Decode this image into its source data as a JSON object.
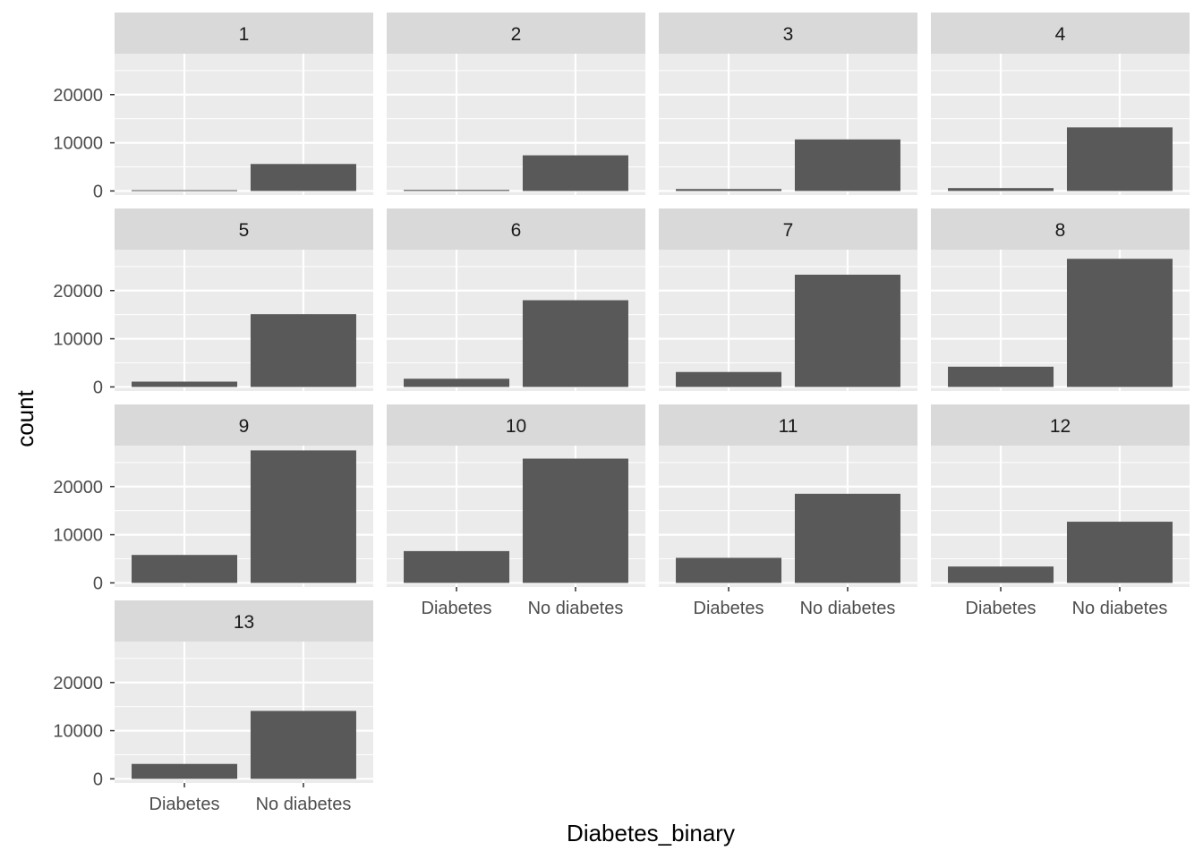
{
  "chart_data": {
    "type": "bar",
    "xlabel": "Diabetes_binary",
    "ylabel": "count",
    "categories": [
      "Diabetes",
      "No diabetes"
    ],
    "y_ticks": [
      "0",
      "10000",
      "20000"
    ],
    "ylim": [
      0,
      28500
    ],
    "grid": true,
    "facets": [
      {
        "label": "1",
        "values": [
          160,
          5600
        ]
      },
      {
        "label": "2",
        "values": [
          220,
          7400
        ]
      },
      {
        "label": "3",
        "values": [
          400,
          10700
        ]
      },
      {
        "label": "4",
        "values": [
          600,
          13200
        ]
      },
      {
        "label": "5",
        "values": [
          1100,
          15100
        ]
      },
      {
        "label": "6",
        "values": [
          1700,
          18000
        ]
      },
      {
        "label": "7",
        "values": [
          3100,
          23300
        ]
      },
      {
        "label": "8",
        "values": [
          4200,
          26600
        ]
      },
      {
        "label": "9",
        "values": [
          5800,
          27500
        ]
      },
      {
        "label": "10",
        "values": [
          6600,
          25800
        ]
      },
      {
        "label": "11",
        "values": [
          5200,
          18500
        ]
      },
      {
        "label": "12",
        "values": [
          3400,
          12700
        ]
      },
      {
        "label": "13",
        "values": [
          3100,
          14100
        ]
      }
    ]
  },
  "colors": {
    "panel_bg": "#ebebeb",
    "strip_bg": "#d9d9d9",
    "grid": "#ffffff",
    "bar": "#595959",
    "tick": "#333333"
  }
}
